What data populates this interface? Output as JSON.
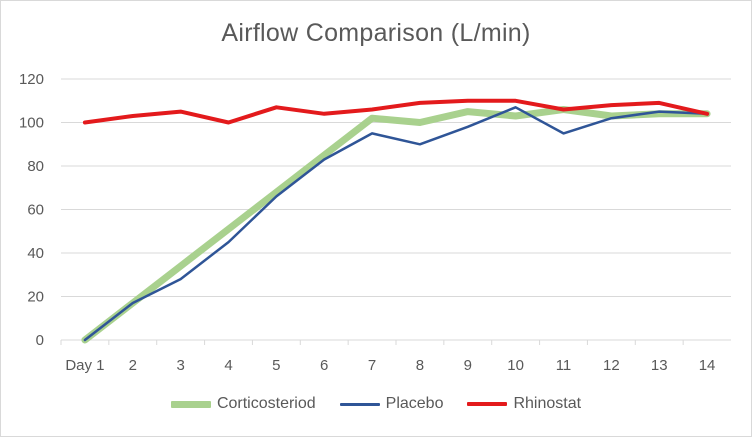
{
  "chart_data": {
    "type": "line",
    "title": "Airflow Comparison  (L/min)",
    "xlabel": "",
    "ylabel": "",
    "categories": [
      "Day 1",
      "2",
      "3",
      "4",
      "5",
      "6",
      "7",
      "8",
      "9",
      "10",
      "11",
      "12",
      "13",
      "14"
    ],
    "ylim": [
      0,
      120
    ],
    "yticks": [
      "0",
      "20",
      "40",
      "60",
      "80",
      "100",
      "120"
    ],
    "grid": true,
    "legend_position": "bottom",
    "series": [
      {
        "name": "Corticosteriod",
        "color": "#a9d18e",
        "values": [
          0,
          17,
          34,
          51,
          68,
          85,
          102,
          100,
          105,
          103,
          106,
          103,
          104,
          104
        ]
      },
      {
        "name": "Placebo",
        "color": "#2f5597",
        "values": [
          0,
          17,
          28,
          45,
          66,
          83,
          95,
          90,
          98,
          107,
          95,
          102,
          105,
          104
        ]
      },
      {
        "name": "Rhinostat",
        "color": "#e31a1c",
        "values": [
          100,
          103,
          105,
          100,
          107,
          104,
          106,
          109,
          110,
          110,
          106,
          108,
          109,
          104
        ]
      }
    ]
  }
}
